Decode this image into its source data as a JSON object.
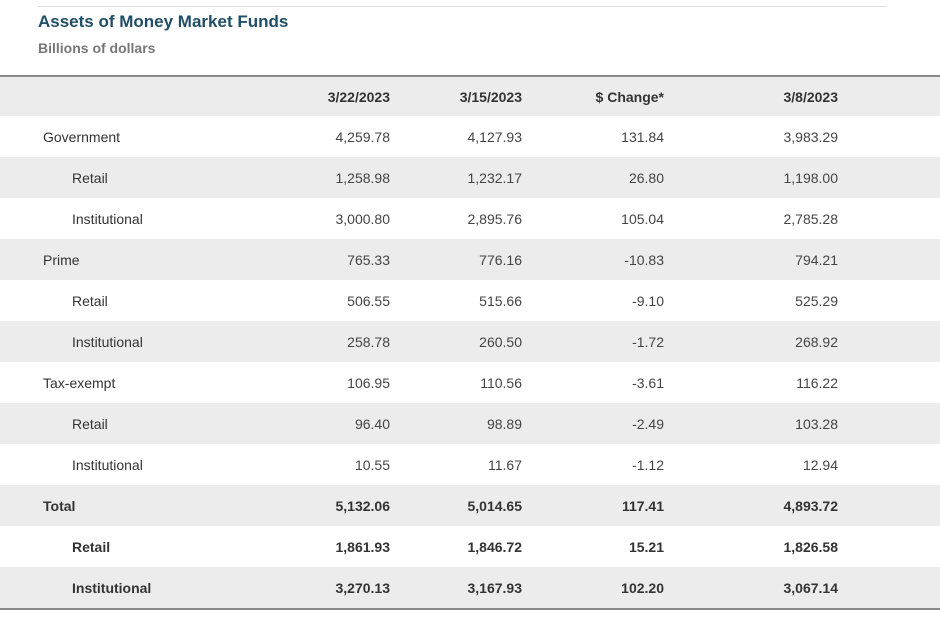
{
  "title": "Assets of Money Market Funds",
  "subtitle": "Billions of dollars",
  "columns": [
    "",
    "3/22/2023",
    "3/15/2023",
    "$ Change*",
    "3/8/2023"
  ],
  "rows": [
    {
      "label": "Government",
      "level": 0,
      "bold": false,
      "values": [
        "4,259.78",
        "4,127.93",
        "131.84",
        "3,983.29"
      ]
    },
    {
      "label": "Retail",
      "level": 1,
      "bold": false,
      "values": [
        "1,258.98",
        "1,232.17",
        "26.80",
        "1,198.00"
      ]
    },
    {
      "label": "Institutional",
      "level": 1,
      "bold": false,
      "values": [
        "3,000.80",
        "2,895.76",
        "105.04",
        "2,785.28"
      ]
    },
    {
      "label": "Prime",
      "level": 0,
      "bold": false,
      "values": [
        "765.33",
        "776.16",
        "-10.83",
        "794.21"
      ]
    },
    {
      "label": "Retail",
      "level": 1,
      "bold": false,
      "values": [
        "506.55",
        "515.66",
        "-9.10",
        "525.29"
      ]
    },
    {
      "label": "Institutional",
      "level": 1,
      "bold": false,
      "values": [
        "258.78",
        "260.50",
        "-1.72",
        "268.92"
      ]
    },
    {
      "label": "Tax-exempt",
      "level": 0,
      "bold": false,
      "values": [
        "106.95",
        "110.56",
        "-3.61",
        "116.22"
      ]
    },
    {
      "label": "Retail",
      "level": 1,
      "bold": false,
      "values": [
        "96.40",
        "98.89",
        "-2.49",
        "103.28"
      ]
    },
    {
      "label": "Institutional",
      "level": 1,
      "bold": false,
      "values": [
        "10.55",
        "11.67",
        "-1.12",
        "12.94"
      ]
    },
    {
      "label": "Total",
      "level": 0,
      "bold": true,
      "values": [
        "5,132.06",
        "5,014.65",
        "117.41",
        "4,893.72"
      ]
    },
    {
      "label": "Retail",
      "level": 1,
      "bold": true,
      "values": [
        "1,861.93",
        "1,846.72",
        "15.21",
        "1,826.58"
      ]
    },
    {
      "label": "Institutional",
      "level": 1,
      "bold": true,
      "values": [
        "3,270.13",
        "3,167.93",
        "102.20",
        "3,067.14"
      ]
    }
  ]
}
